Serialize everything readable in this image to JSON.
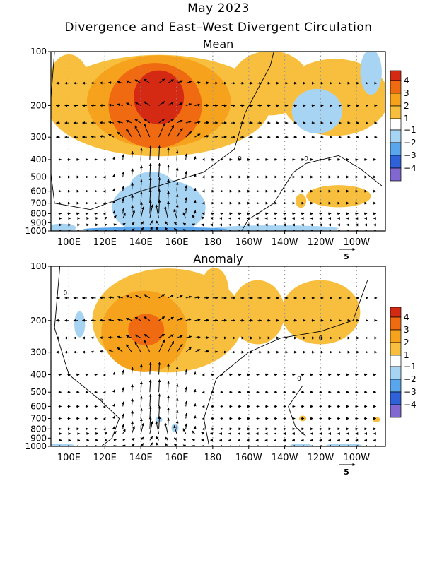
{
  "header": {
    "line1": "May 2023",
    "line2": "Divergence and East–West Divergent Circulation"
  },
  "colors": {
    "pos1": "#f8bf3f",
    "pos2": "#f6a21c",
    "pos3": "#ef6a10",
    "pos4": "#d42a14",
    "neg1": "#a8d4f4",
    "neg2": "#5aa6ec",
    "neg3": "#2f62d8",
    "neg4": "#8068d0"
  },
  "colorbar": {
    "labels": [
      "4",
      "3",
      "2",
      "1",
      "−1",
      "−2",
      "−3",
      "−4"
    ]
  },
  "reference_vector_label": "5",
  "chart_data": [
    {
      "type": "heatmap",
      "title": "Mean",
      "x_ticks": [
        "100E",
        "120E",
        "140E",
        "160E",
        "180",
        "160W",
        "140W",
        "120W",
        "100W"
      ],
      "x_range_deg_east": [
        90,
        276
      ],
      "y_ticks": [
        "100",
        "200",
        "300",
        "400",
        "500",
        "600",
        "700",
        "800",
        "900",
        "1000"
      ],
      "y_range_hpa": [
        100,
        1000
      ],
      "contour_label": "0",
      "blobs": [
        {
          "lon": 150,
          "p": 180,
          "level": 4,
          "rx": 14,
          "ry": 60
        },
        {
          "lon": 148,
          "p": 200,
          "level": 3,
          "rx": 26,
          "ry": 100
        },
        {
          "lon": 150,
          "p": 190,
          "level": 2,
          "rx": 40,
          "ry": 140
        },
        {
          "lon": 150,
          "p": 200,
          "level": 1,
          "rx": 62,
          "ry": 170
        },
        {
          "lon": 100,
          "p": 160,
          "level": 1,
          "rx": 12,
          "ry": 80
        },
        {
          "lon": 212,
          "p": 150,
          "level": 1,
          "rx": 22,
          "ry": 80
        },
        {
          "lon": 248,
          "p": 180,
          "level": 1,
          "rx": 30,
          "ry": 90
        },
        {
          "lon": 238,
          "p": 215,
          "level": -1,
          "rx": 14,
          "ry": 60
        },
        {
          "lon": 268,
          "p": 130,
          "level": -1,
          "rx": 6,
          "ry": 50
        },
        {
          "lon": 250,
          "p": 640,
          "level": 1,
          "rx": 18,
          "ry": 90
        },
        {
          "lon": 229,
          "p": 680,
          "level": 1,
          "rx": 3,
          "ry": 60
        },
        {
          "lon": 150,
          "p": 740,
          "level": -1,
          "rx": 26,
          "ry": 260
        },
        {
          "lon": 146,
          "p": 560,
          "level": -1,
          "rx": 12,
          "ry": 100
        },
        {
          "lon": 96,
          "p": 960,
          "level": -1,
          "rx": 8,
          "ry": 50
        },
        {
          "lon": 215,
          "p": 970,
          "level": -1,
          "rx": 35,
          "ry": 40
        },
        {
          "lon": 148,
          "p": 980,
          "level": -2,
          "rx": 40,
          "ry": 30
        }
      ]
    },
    {
      "type": "heatmap",
      "title": "Anomaly",
      "x_ticks": [
        "100E",
        "120E",
        "140E",
        "160E",
        "180",
        "160W",
        "140W",
        "120W",
        "100W"
      ],
      "x_range_deg_east": [
        90,
        276
      ],
      "y_ticks": [
        "100",
        "200",
        "300",
        "400",
        "500",
        "600",
        "700",
        "800",
        "900",
        "1000"
      ],
      "y_range_hpa": [
        100,
        1000
      ],
      "contour_label": "0",
      "blobs": [
        {
          "lon": 143,
          "p": 225,
          "level": 3,
          "rx": 10,
          "ry": 45
        },
        {
          "lon": 142,
          "p": 230,
          "level": 2,
          "rx": 24,
          "ry": 110
        },
        {
          "lon": 155,
          "p": 200,
          "level": 1,
          "rx": 42,
          "ry": 180
        },
        {
          "lon": 181,
          "p": 140,
          "level": 1,
          "rx": 8,
          "ry": 50
        },
        {
          "lon": 205,
          "p": 180,
          "level": 1,
          "rx": 15,
          "ry": 70
        },
        {
          "lon": 240,
          "p": 180,
          "level": 1,
          "rx": 22,
          "ry": 70
        },
        {
          "lon": 106,
          "p": 210,
          "level": -1,
          "rx": 3,
          "ry": 35
        },
        {
          "lon": 159,
          "p": 790,
          "level": -1,
          "rx": 2,
          "ry": 45
        },
        {
          "lon": 150,
          "p": 710,
          "level": -1,
          "rx": 2,
          "ry": 25
        },
        {
          "lon": 230,
          "p": 700,
          "level": 1,
          "rx": 2,
          "ry": 25
        },
        {
          "lon": 271,
          "p": 710,
          "level": 1,
          "rx": 2,
          "ry": 25
        },
        {
          "lon": 95,
          "p": 990,
          "level": -1,
          "rx": 8,
          "ry": 15
        },
        {
          "lon": 229,
          "p": 990,
          "level": -1,
          "rx": 6,
          "ry": 15
        },
        {
          "lon": 253,
          "p": 990,
          "level": -1,
          "rx": 10,
          "ry": 15
        }
      ]
    }
  ]
}
